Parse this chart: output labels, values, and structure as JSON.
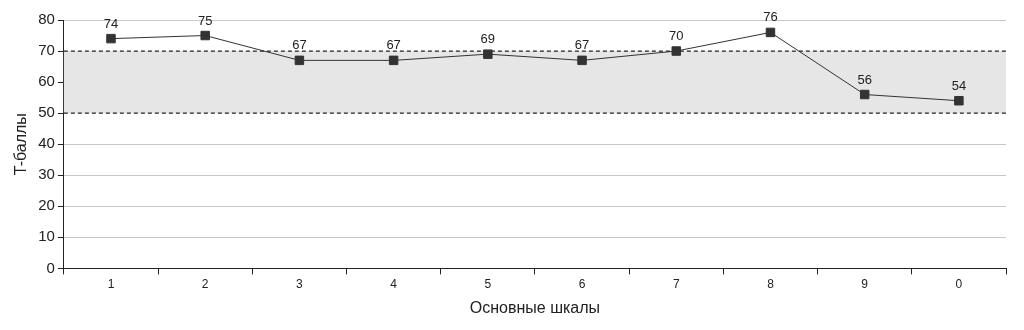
{
  "chart_data": {
    "type": "line",
    "xlabel": "Основные шкалы",
    "ylabel": "T-баллы",
    "categories": [
      "1",
      "2",
      "3",
      "4",
      "5",
      "6",
      "7",
      "8",
      "9",
      "0"
    ],
    "series": [
      {
        "color": "#333333",
        "values": [
          74,
          75,
          67,
          67,
          69,
          67,
          70,
          76,
          56,
          54
        ]
      }
    ],
    "ylim": [
      0,
      80
    ],
    "yticks": [
      0,
      10,
      20,
      30,
      40,
      50,
      60,
      70,
      80
    ],
    "bands": [
      {
        "axis": "y",
        "from": 50,
        "to": 70,
        "color": "#e6e6e6"
      }
    ],
    "grid": "y",
    "marker": "square",
    "line_style": "solid",
    "data_labels": true,
    "legend": false
  }
}
